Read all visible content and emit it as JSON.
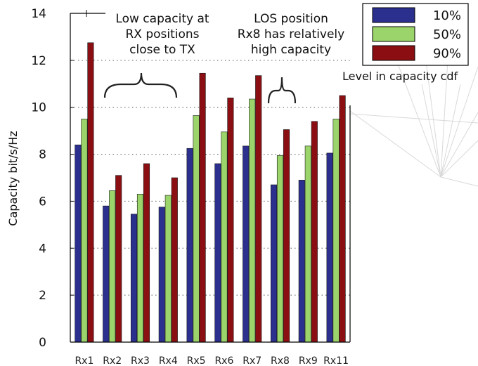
{
  "chart_data": {
    "type": "bar",
    "categories": [
      "Rx1",
      "Rx2",
      "Rx3",
      "Rx4",
      "Rx5",
      "Rx6",
      "Rx7",
      "Rx8",
      "Rx9",
      "Rx11"
    ],
    "series": [
      {
        "name": "10%",
        "color": "#2b2f8e",
        "values": [
          8.4,
          5.8,
          5.45,
          5.75,
          8.25,
          7.6,
          8.35,
          6.7,
          6.9,
          8.05
        ]
      },
      {
        "name": "50%",
        "color": "#9bd46a",
        "values": [
          9.5,
          6.45,
          6.3,
          6.25,
          9.65,
          8.95,
          10.35,
          7.95,
          8.35,
          9.5
        ]
      },
      {
        "name": "90%",
        "color": "#8b0f12",
        "values": [
          12.75,
          7.1,
          7.6,
          7.0,
          11.45,
          10.4,
          11.35,
          9.05,
          9.4,
          10.5
        ]
      }
    ],
    "ylabel": "Capacity bit/s/Hz",
    "xlabel": "",
    "ylim": [
      0,
      14
    ],
    "yticks": [
      "0",
      "2",
      "4",
      "6",
      "8",
      "10",
      "12",
      "14"
    ],
    "grid": "horizontal-dotted",
    "legend_title": "Level in capacity cdf",
    "legend_position": "top-right",
    "annotations": [
      {
        "lines": [
          "Low capacity at",
          "RX positions",
          "close to TX"
        ]
      },
      {
        "lines": [
          "LOS position",
          "Rx8 has relatively",
          "high capacity"
        ]
      }
    ]
  }
}
